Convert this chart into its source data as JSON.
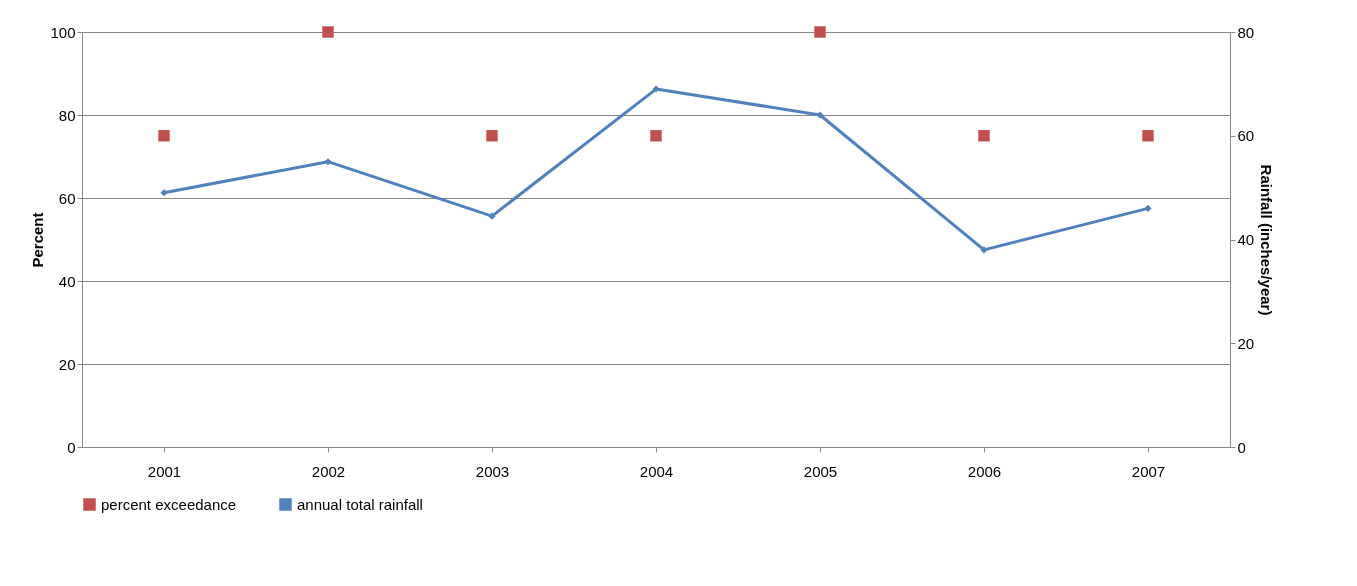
{
  "chart_data": {
    "type": "scatter",
    "ylabel": "Percent",
    "y2label": "Rainfall (inches/year)",
    "categories": [
      "2001",
      "2002",
      "2003",
      "2004",
      "2005",
      "2006",
      "2007"
    ],
    "series": [
      {
        "name": "percent exceedance",
        "marker": "square",
        "color": "#c0504d",
        "values": [
          75,
          100,
          75,
          75,
          100,
          75,
          75
        ]
      },
      {
        "name": "annual total rainfall",
        "type": "line",
        "axis": "y2",
        "marker": "diamond",
        "color": "#4f81bd",
        "values": [
          49,
          55,
          44.5,
          69,
          64,
          38,
          46
        ]
      }
    ],
    "ylim": [
      0,
      100
    ],
    "yticks": [
      0,
      20,
      40,
      60,
      80,
      100
    ],
    "y2lim": [
      0,
      80
    ],
    "y2ticks": [
      0,
      20,
      40,
      60,
      80
    ],
    "grid": "y",
    "legend": "bottom"
  }
}
